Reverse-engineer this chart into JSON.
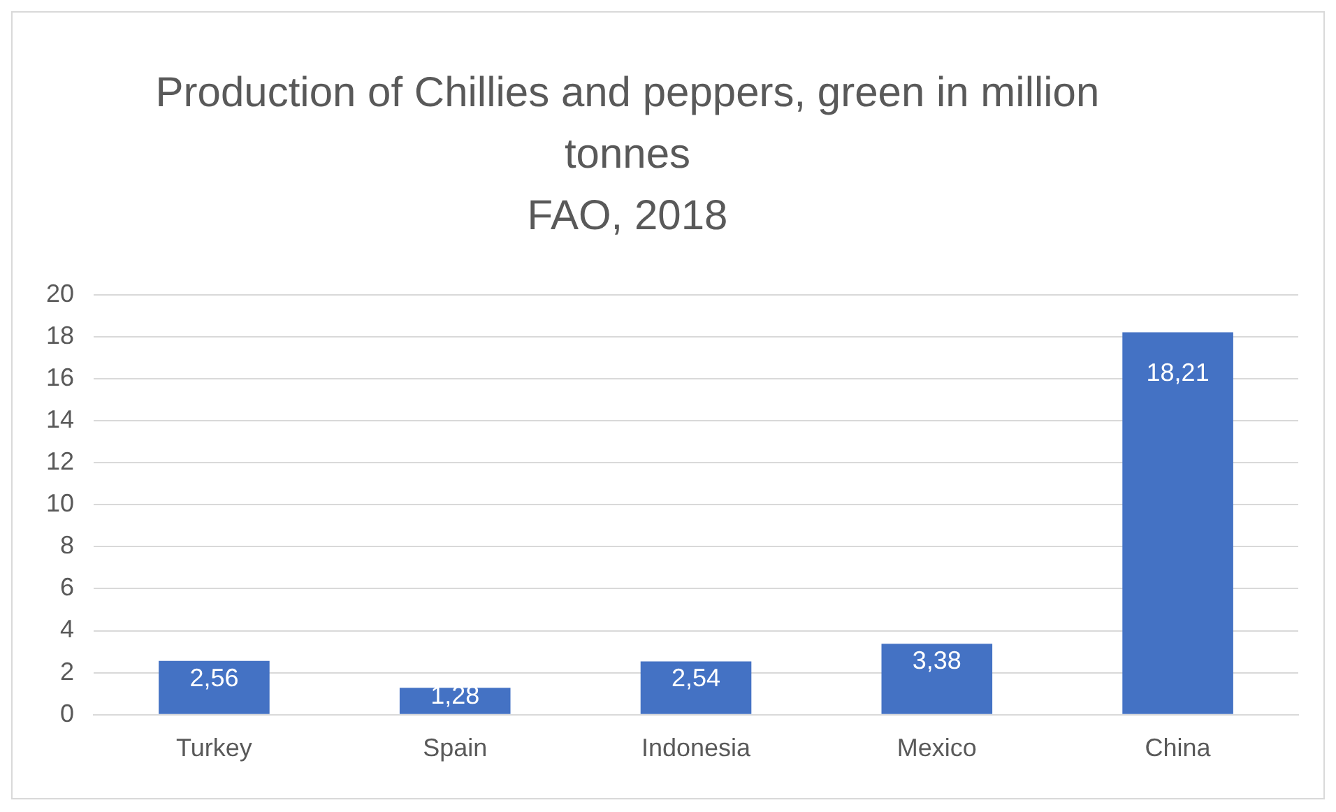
{
  "chart_data": {
    "type": "bar",
    "title": "Production of Chillies and peppers, green in million tonnes",
    "subtitle": "FAO, 2018",
    "categories": [
      "Turkey",
      "Spain",
      "Indonesia",
      "Mexico",
      "China"
    ],
    "values": [
      2.56,
      1.28,
      2.54,
      3.38,
      18.21
    ],
    "value_labels": [
      "2,56",
      "1,28",
      "2,54",
      "3,38",
      "18,21"
    ],
    "color": "#4472c4",
    "ylim": [
      0,
      20
    ],
    "yticks": [
      0,
      2,
      4,
      6,
      8,
      10,
      12,
      14,
      16,
      18,
      20
    ],
    "grid": "y"
  }
}
